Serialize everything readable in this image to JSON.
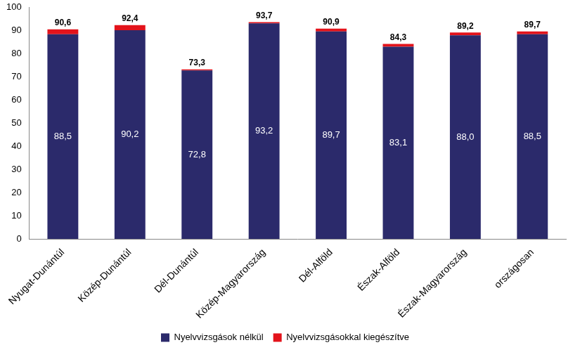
{
  "chart_data": {
    "type": "bar",
    "stacked": true,
    "data_labels": true,
    "grid": false,
    "legend": "bottom",
    "categories": [
      "Nyugat-Dunántúl",
      "Közép-Dunántúl",
      "Dél-Dunántúl",
      "Közép-Magyarország",
      "Dél-Alföld",
      "Észak-Alföld",
      "Észak-Magyarország",
      "országosan"
    ],
    "series": [
      {
        "name": "Nyelvvizsgások nélkül",
        "color": "#2b2a6b",
        "values": [
          88.5,
          90.2,
          72.8,
          93.2,
          89.7,
          83.1,
          88.0,
          88.5
        ],
        "value_labels": [
          "88,5",
          "90,2",
          "72,8",
          "93,2",
          "89,7",
          "83,1",
          "88,0",
          "88,5"
        ]
      },
      {
        "name": "Nyelvvizsgásokkal kiegészítve",
        "color": "#e3131b",
        "values": [
          2.1,
          2.2,
          0.5,
          0.5,
          1.2,
          1.2,
          1.2,
          1.2
        ]
      }
    ],
    "totals": [
      90.6,
      92.4,
      73.3,
      93.7,
      90.9,
      84.3,
      89.2,
      89.7
    ],
    "total_labels": [
      "90,6",
      "92,4",
      "73,3",
      "93,7",
      "90,9",
      "84,3",
      "89,2",
      "89,7"
    ],
    "ylim": [
      0,
      100
    ],
    "yticks": [
      0,
      10,
      20,
      30,
      40,
      50,
      60,
      70,
      80,
      90,
      100
    ]
  }
}
